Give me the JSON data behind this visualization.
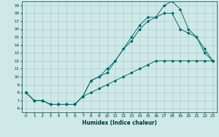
{
  "xlabel": "Humidex (Indice chaleur)",
  "xlim": [
    -0.5,
    23.5
  ],
  "ylim": [
    5.5,
    19.5
  ],
  "xticks": [
    0,
    1,
    2,
    3,
    4,
    5,
    6,
    7,
    8,
    9,
    10,
    11,
    12,
    13,
    14,
    15,
    16,
    17,
    18,
    19,
    20,
    21,
    22,
    23
  ],
  "yticks": [
    6,
    7,
    8,
    9,
    10,
    11,
    12,
    13,
    14,
    15,
    16,
    17,
    18,
    19
  ],
  "background_color": "#cfe8e8",
  "grid_color": "#aacece",
  "line_color": "#006666",
  "line1_x": [
    0,
    1,
    2,
    3,
    4,
    5,
    6,
    7,
    8,
    9,
    10,
    11,
    12,
    13,
    14,
    15,
    16,
    17,
    18,
    19,
    20,
    21,
    22,
    23
  ],
  "line1_y": [
    8,
    7,
    7,
    6.5,
    6.5,
    6.5,
    6.5,
    7.5,
    8.0,
    8.5,
    9.0,
    9.5,
    10.0,
    10.5,
    11.0,
    11.5,
    12.0,
    12.0,
    12.0,
    12.0,
    12.0,
    12.0,
    12.0,
    12.0
  ],
  "line2_x": [
    0,
    1,
    2,
    3,
    4,
    5,
    6,
    7,
    8,
    9,
    10,
    11,
    12,
    13,
    14,
    15,
    16,
    17,
    18,
    19,
    20,
    21,
    22,
    23
  ],
  "line2_y": [
    8,
    7,
    7,
    6.5,
    6.5,
    6.5,
    6.5,
    7.5,
    9.5,
    10,
    11,
    12,
    13.5,
    14.5,
    16,
    17,
    17.5,
    18,
    18,
    16,
    15.5,
    15,
    13,
    12
  ],
  "line3_x": [
    0,
    1,
    2,
    3,
    4,
    5,
    6,
    7,
    8,
    9,
    10,
    11,
    12,
    13,
    14,
    15,
    16,
    17,
    18,
    19,
    20,
    21,
    22,
    23
  ],
  "line3_y": [
    8,
    7,
    7,
    6.5,
    6.5,
    6.5,
    6.5,
    7.5,
    9.5,
    10,
    10.5,
    12,
    13.5,
    15,
    16.5,
    17.5,
    17.5,
    19,
    19.5,
    18.5,
    16,
    15,
    13.5,
    12
  ]
}
